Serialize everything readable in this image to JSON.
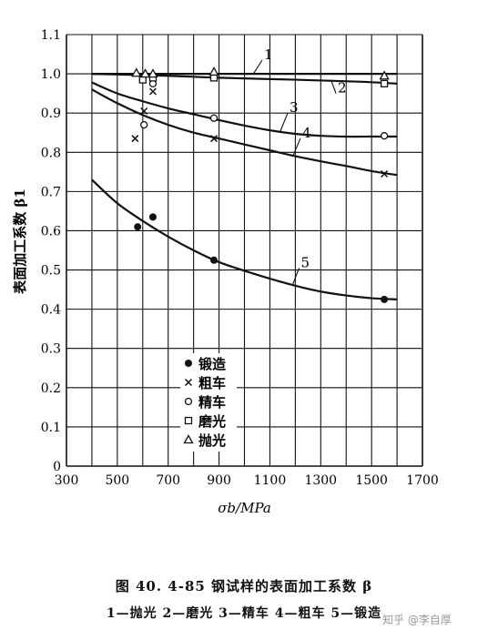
{
  "chart_data": {
    "type": "line",
    "ylabel": "表面加工系数 β1",
    "xlabel": "σb/MPa",
    "xlim": [
      300,
      1700
    ],
    "ylim": [
      0,
      1.1
    ],
    "x_ticks": [
      "300",
      "500",
      "700",
      "900",
      "1100",
      "1300",
      "1500",
      "1700"
    ],
    "y_ticks": [
      "0",
      "0.1",
      "0.2",
      "0.3",
      "0.4",
      "0.5",
      "0.6",
      "0.7",
      "0.8",
      "0.9",
      "1.0",
      "1.1"
    ],
    "grid": true,
    "curves": [
      {
        "label": "1",
        "x": [
          400,
          1600
        ],
        "y": [
          1.0,
          1.0
        ]
      },
      {
        "label": "2",
        "x": [
          400,
          700,
          900,
          1200,
          1450,
          1600
        ],
        "y": [
          1.0,
          0.995,
          0.99,
          0.985,
          0.98,
          0.975
        ]
      },
      {
        "label": "3",
        "x": [
          400,
          500,
          600,
          700,
          800,
          900,
          1000,
          1100,
          1200,
          1300,
          1400,
          1500,
          1600
        ],
        "y": [
          0.978,
          0.95,
          0.93,
          0.912,
          0.897,
          0.882,
          0.868,
          0.856,
          0.847,
          0.842,
          0.84,
          0.84,
          0.84
        ]
      },
      {
        "label": "4",
        "x": [
          400,
          500,
          600,
          700,
          800,
          900,
          1000,
          1100,
          1200,
          1300,
          1400,
          1500,
          1600
        ],
        "y": [
          0.96,
          0.925,
          0.895,
          0.87,
          0.85,
          0.835,
          0.82,
          0.805,
          0.79,
          0.777,
          0.765,
          0.752,
          0.742
        ]
      },
      {
        "label": "5",
        "x": [
          400,
          500,
          600,
          700,
          800,
          900,
          1000,
          1100,
          1200,
          1300,
          1400,
          1500,
          1600
        ],
        "y": [
          0.73,
          0.67,
          0.625,
          0.585,
          0.55,
          0.52,
          0.498,
          0.478,
          0.46,
          0.445,
          0.435,
          0.428,
          0.425
        ]
      }
    ],
    "series": [
      {
        "name": "锻造",
        "marker": "dot",
        "points": [
          [
            580,
            0.61
          ],
          [
            640,
            0.635
          ],
          [
            880,
            0.525
          ],
          [
            1550,
            0.425
          ]
        ]
      },
      {
        "name": "粗车",
        "marker": "cross",
        "points": [
          [
            570,
            0.835
          ],
          [
            605,
            0.905
          ],
          [
            640,
            0.955
          ],
          [
            880,
            0.835
          ],
          [
            1550,
            0.745
          ]
        ]
      },
      {
        "name": "精车",
        "marker": "circle",
        "points": [
          [
            605,
            0.87
          ],
          [
            640,
            0.975
          ],
          [
            880,
            0.887
          ],
          [
            1550,
            0.842
          ]
        ]
      },
      {
        "name": "磨光",
        "marker": "square",
        "points": [
          [
            600,
            0.985
          ],
          [
            640,
            0.99
          ],
          [
            880,
            0.99
          ],
          [
            1550,
            0.975
          ]
        ]
      },
      {
        "name": "抛光",
        "marker": "triangle",
        "points": [
          [
            575,
            1.002
          ],
          [
            610,
            1.0
          ],
          [
            640,
            1.0
          ],
          [
            880,
            1.005
          ],
          [
            1550,
            0.995
          ]
        ]
      }
    ],
    "title": "图 40. 4-85   钢试样的表面加工系数 β",
    "caption_legend": "1—抛光  2—磨光  3—精车  4—粗车  5—锻造",
    "legend_position": "bottom-center"
  },
  "watermark": "知乎 @李自厚"
}
